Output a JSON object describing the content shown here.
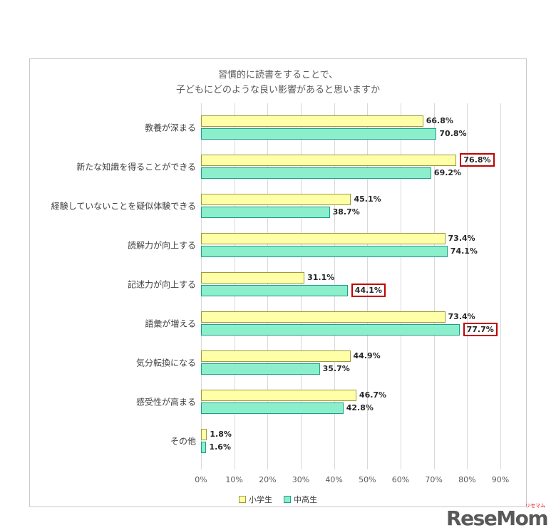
{
  "chart_data": {
    "type": "bar",
    "orientation": "horizontal",
    "title_line1": "習慣的に読書をすることで、",
    "title_line2": "子どもにどのような良い影響があると思いますか",
    "categories": [
      "教養が深まる",
      "新たな知識を得ることができる",
      "経験していないことを疑似体験できる",
      "読解力が向上する",
      "記述力が向上する",
      "語彙が増える",
      "気分転換になる",
      "感受性が高まる",
      "その他"
    ],
    "series": [
      {
        "name": "小学生",
        "fill": "#FFFFA8",
        "border": "#9c9c3c",
        "values": [
          66.8,
          76.8,
          45.1,
          73.4,
          31.1,
          73.4,
          44.9,
          46.7,
          1.8
        ],
        "highlighted": [
          false,
          true,
          false,
          false,
          false,
          false,
          false,
          false,
          false
        ]
      },
      {
        "name": "中高生",
        "fill": "#8BEFCB",
        "border": "#1f9e8c",
        "values": [
          70.8,
          69.2,
          38.7,
          74.1,
          44.1,
          77.7,
          35.7,
          42.8,
          1.6
        ],
        "highlighted": [
          false,
          false,
          false,
          false,
          true,
          true,
          false,
          false,
          false
        ]
      }
    ],
    "xlim": [
      0,
      90
    ],
    "x_ticks": [
      "0%",
      "10%",
      "20%",
      "30%",
      "40%",
      "50%",
      "60%",
      "70%",
      "80%",
      "90%"
    ],
    "grid": true,
    "legend_position": "bottom",
    "highlight_color": "#c00000"
  },
  "logo": {
    "text": "ReseMom",
    "ruby": "リセマム"
  }
}
